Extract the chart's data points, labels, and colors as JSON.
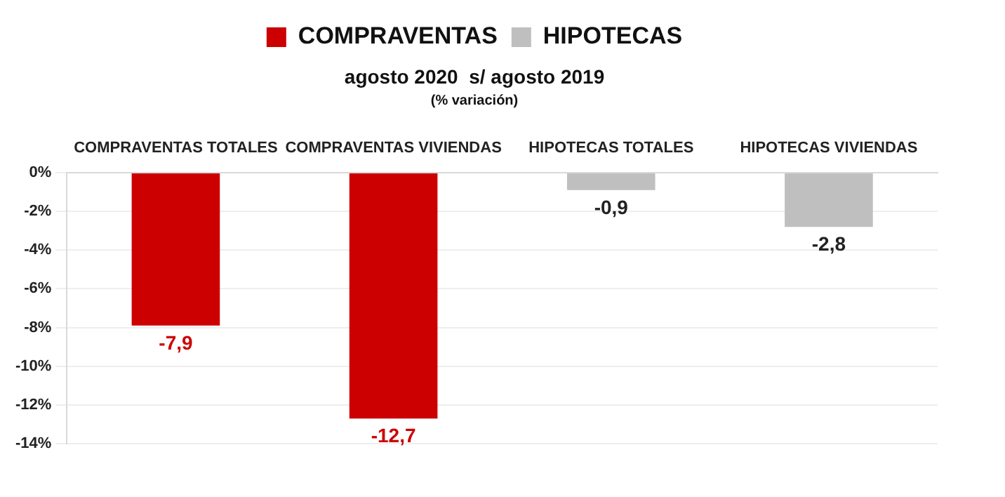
{
  "chart_data": {
    "type": "bar",
    "title": "agosto 2020  s/ agosto 2019",
    "subtitle": "(% variación)",
    "categories": [
      "COMPRAVENTAS TOTALES",
      "COMPRAVENTAS VIVIENDAS",
      "HIPOTECAS TOTALES",
      "HIPOTECAS VIVIENDAS"
    ],
    "series": [
      {
        "name": "COMPRAVENTAS",
        "color": "#cc0000",
        "values": [
          -7.9,
          -12.7,
          null,
          null
        ],
        "value_labels": [
          "-7,9",
          "-12,7",
          null,
          null
        ]
      },
      {
        "name": "HIPOTECAS",
        "color": "#bfbfbf",
        "values": [
          null,
          null,
          -0.9,
          -2.8
        ],
        "value_labels": [
          null,
          null,
          "-0,9",
          "-2,8"
        ]
      }
    ],
    "ylim": [
      -14,
      0
    ],
    "yticks": [
      {
        "value": 0,
        "label": "0%"
      },
      {
        "value": -2,
        "label": "-2%"
      },
      {
        "value": -4,
        "label": "-4%"
      },
      {
        "value": -6,
        "label": "-6%"
      },
      {
        "value": -8,
        "label": "-8%"
      },
      {
        "value": -10,
        "label": "-10%"
      },
      {
        "value": -12,
        "label": "-12%"
      },
      {
        "value": -14,
        "label": "-14%"
      }
    ],
    "grid": "y",
    "legend": "top"
  }
}
